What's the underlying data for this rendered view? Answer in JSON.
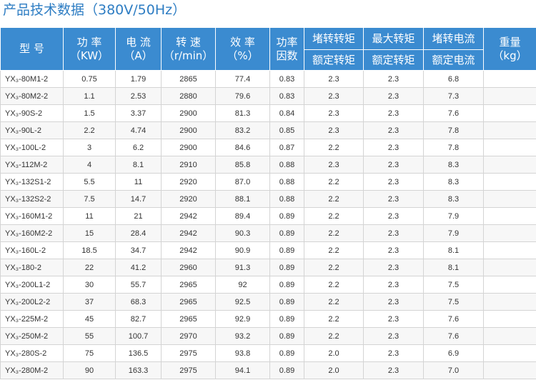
{
  "title": "产品技术数据（380V/50Hz）",
  "headers": {
    "model": "型 号",
    "power": [
      "功 率",
      "（KW）"
    ],
    "current": [
      "电 流",
      "（A）"
    ],
    "speed": [
      "转 速",
      "（r/min）"
    ],
    "efficiency": [
      "效 率",
      "（%）"
    ],
    "pf": [
      "功率",
      "因数"
    ],
    "locked_torque": [
      "堵转转矩",
      "额定转矩"
    ],
    "max_torque": [
      "最大转矩",
      "额定转矩"
    ],
    "locked_current": [
      "堵转电流",
      "额定电流"
    ],
    "weight": [
      "重量",
      "（kg）"
    ]
  },
  "rows": [
    {
      "model": "YX₃-80M1-2",
      "power": "0.75",
      "current": "1.79",
      "speed": "2865",
      "eff": "77.4",
      "pf": "0.83",
      "lt": "2.3",
      "mt": "2.3",
      "lc": "6.8",
      "wt": ""
    },
    {
      "model": "YX₃-80M2-2",
      "power": "1.1",
      "current": "2.53",
      "speed": "2880",
      "eff": "79.6",
      "pf": "0.83",
      "lt": "2.3",
      "mt": "2.3",
      "lc": "7.3",
      "wt": ""
    },
    {
      "model": "YX₃-90S-2",
      "power": "1.5",
      "current": "3.37",
      "speed": "2900",
      "eff": "81.3",
      "pf": "0.84",
      "lt": "2.3",
      "mt": "2.3",
      "lc": "7.6",
      "wt": ""
    },
    {
      "model": "YX₃-90L-2",
      "power": "2.2",
      "current": "4.74",
      "speed": "2900",
      "eff": "83.2",
      "pf": "0.85",
      "lt": "2.3",
      "mt": "2.3",
      "lc": "7.8",
      "wt": ""
    },
    {
      "model": "YX₃-100L-2",
      "power": "3",
      "current": "6.2",
      "speed": "2900",
      "eff": "84.6",
      "pf": "0.87",
      "lt": "2.2",
      "mt": "2.3",
      "lc": "7.8",
      "wt": ""
    },
    {
      "model": "YX₃-112M-2",
      "power": "4",
      "current": "8.1",
      "speed": "2910",
      "eff": "85.8",
      "pf": "0.88",
      "lt": "2.3",
      "mt": "2.3",
      "lc": "8.3",
      "wt": ""
    },
    {
      "model": "YX₃-132S1-2",
      "power": "5.5",
      "current": "11",
      "speed": "2920",
      "eff": "87.0",
      "pf": "0.88",
      "lt": "2.2",
      "mt": "2.3",
      "lc": "8.3",
      "wt": ""
    },
    {
      "model": "YX₃-132S2-2",
      "power": "7.5",
      "current": "14.7",
      "speed": "2920",
      "eff": "88.1",
      "pf": "0.88",
      "lt": "2.2",
      "mt": "2.3",
      "lc": "8.3",
      "wt": ""
    },
    {
      "model": "YX₃-160M1-2",
      "power": "11",
      "current": "21",
      "speed": "2942",
      "eff": "89.4",
      "pf": "0.89",
      "lt": "2.2",
      "mt": "2.3",
      "lc": "7.9",
      "wt": ""
    },
    {
      "model": "YX₃-160M2-2",
      "power": "15",
      "current": "28.4",
      "speed": "2942",
      "eff": "90.3",
      "pf": "0.89",
      "lt": "2.2",
      "mt": "2.3",
      "lc": "7.9",
      "wt": ""
    },
    {
      "model": "YX₃-160L-2",
      "power": "18.5",
      "current": "34.7",
      "speed": "2942",
      "eff": "90.9",
      "pf": "0.89",
      "lt": "2.2",
      "mt": "2.3",
      "lc": "8.1",
      "wt": ""
    },
    {
      "model": "YX₃-180-2",
      "power": "22",
      "current": "41.2",
      "speed": "2960",
      "eff": "91.3",
      "pf": "0.89",
      "lt": "2.2",
      "mt": "2.3",
      "lc": "8.1",
      "wt": ""
    },
    {
      "model": "YX₃-200L1-2",
      "power": "30",
      "current": "55.7",
      "speed": "2965",
      "eff": "92",
      "pf": "0.89",
      "lt": "2.2",
      "mt": "2.3",
      "lc": "7.5",
      "wt": ""
    },
    {
      "model": "YX₃-200L2-2",
      "power": "37",
      "current": "68.3",
      "speed": "2965",
      "eff": "92.5",
      "pf": "0.89",
      "lt": "2.2",
      "mt": "2.3",
      "lc": "7.5",
      "wt": ""
    },
    {
      "model": "YX₃-225M-2",
      "power": "45",
      "current": "82.7",
      "speed": "2965",
      "eff": "92.9",
      "pf": "0.89",
      "lt": "2.2",
      "mt": "2.3",
      "lc": "7.6",
      "wt": ""
    },
    {
      "model": "YX₃-250M-2",
      "power": "55",
      "current": "100.7",
      "speed": "2970",
      "eff": "93.2",
      "pf": "0.89",
      "lt": "2.2",
      "mt": "2.3",
      "lc": "7.6",
      "wt": ""
    },
    {
      "model": "YX₃-280S-2",
      "power": "75",
      "current": "136.5",
      "speed": "2975",
      "eff": "93.8",
      "pf": "0.89",
      "lt": "2.0",
      "mt": "2.3",
      "lc": "6.9",
      "wt": ""
    },
    {
      "model": "YX₃-280M-2",
      "power": "90",
      "current": "163.3",
      "speed": "2975",
      "eff": "94.1",
      "pf": "0.89",
      "lt": "2.0",
      "mt": "2.3",
      "lc": "7.0",
      "wt": ""
    }
  ]
}
